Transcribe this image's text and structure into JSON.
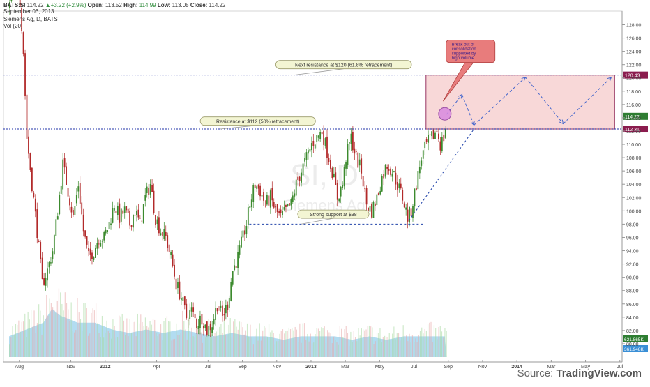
{
  "header": {
    "symbol": "BATS:SI",
    "last": "114.22",
    "change": "+3.22 (+2.9%)",
    "open_label": "Open:",
    "open": "113.52",
    "high_label": "High:",
    "high": "114.99",
    "low_label": "Low:",
    "low": "113.05",
    "close_label": "Close:",
    "close": "114.22",
    "date": "September 06, 2013",
    "study_title": "Siemens Ag, D, BATS",
    "volume_study": "Vol (20)"
  },
  "watermark": {
    "symbol": "SI, D",
    "name": "Siemens Ag"
  },
  "source": {
    "prefix": "Source:",
    "brand": "TradingView.com"
  },
  "chart_data": {
    "type": "candlestick",
    "y_range": [
      78,
      137
    ],
    "y_ticks": [
      80,
      82,
      84,
      86,
      88,
      90,
      92,
      94,
      96,
      98,
      100,
      102,
      104,
      106,
      108,
      110,
      112,
      114,
      116,
      118,
      120,
      122,
      124,
      126,
      128,
      130,
      132,
      134,
      136,
      138
    ],
    "y_tick_labels": [
      "80.00",
      "82.00",
      "84.00",
      "86.00",
      "88.00",
      "90.00",
      "92.00",
      "94.00",
      "96.00",
      "98.00",
      "100.00",
      "102.00",
      "104.00",
      "106.00",
      "108.00",
      "110.00",
      "112.00",
      "114.00",
      "116.00",
      "118.00",
      "120.00",
      "122.00",
      "124.00",
      "126.00",
      "128.00",
      "130.00",
      "132.00",
      "134.00",
      "136.00",
      "138.00"
    ],
    "x_ticks": [
      {
        "label": "Aug",
        "t": 0.6
      },
      {
        "label": "Nov",
        "t": 3.6
      },
      {
        "label": "2012",
        "t": 5.6
      },
      {
        "label": "Apr",
        "t": 8.6
      },
      {
        "label": "Jul",
        "t": 11.6
      },
      {
        "label": "Sep",
        "t": 13.6
      },
      {
        "label": "Nov",
        "t": 15.6
      },
      {
        "label": "2013",
        "t": 17.6
      },
      {
        "label": "Mar",
        "t": 19.6
      },
      {
        "label": "May",
        "t": 21.6
      },
      {
        "label": "Jul",
        "t": 23.6
      },
      {
        "label": "Sep",
        "t": 25.6
      },
      {
        "label": "Nov",
        "t": 27.6
      },
      {
        "label": "2014",
        "t": 29.6
      },
      {
        "label": "Mar",
        "t": 31.6
      },
      {
        "label": "May",
        "t": 33.6
      },
      {
        "label": "Jul",
        "t": 35.6
      }
    ],
    "bold_x_labels": [
      "2012",
      "2013",
      "2014"
    ],
    "price_path": [
      [
        0,
        131
      ],
      [
        0.3,
        133
      ],
      [
        0.5,
        135
      ],
      [
        0.65,
        130
      ],
      [
        0.8,
        124
      ],
      [
        1,
        111
      ],
      [
        1.3,
        104
      ],
      [
        1.6,
        97
      ],
      [
        1.9,
        89
      ],
      [
        2.2,
        91
      ],
      [
        2.5,
        94
      ],
      [
        2.8,
        100
      ],
      [
        3.1,
        107
      ],
      [
        3.4,
        103
      ],
      [
        3.7,
        99
      ],
      [
        4,
        104
      ],
      [
        4.3,
        97
      ],
      [
        4.6,
        93
      ],
      [
        4.9,
        94
      ],
      [
        5.2,
        96
      ],
      [
        5.5,
        96
      ],
      [
        5.8,
        98
      ],
      [
        6.1,
        101
      ],
      [
        6.4,
        99
      ],
      [
        6.7,
        100
      ],
      [
        7,
        98
      ],
      [
        7.3,
        100
      ],
      [
        7.6,
        98
      ],
      [
        7.9,
        102
      ],
      [
        8.2,
        104
      ],
      [
        8.5,
        99
      ],
      [
        8.8,
        97
      ],
      [
        9.1,
        96
      ],
      [
        9.4,
        93
      ],
      [
        9.7,
        89
      ],
      [
        10,
        87
      ],
      [
        10.3,
        84
      ],
      [
        10.6,
        85
      ],
      [
        10.9,
        83
      ],
      [
        11.2,
        84
      ],
      [
        11.5,
        82
      ],
      [
        11.8,
        83
      ],
      [
        12.1,
        86
      ],
      [
        12.4,
        84
      ],
      [
        12.7,
        86
      ],
      [
        13,
        91
      ],
      [
        13.3,
        93
      ],
      [
        13.6,
        96
      ],
      [
        13.8,
        98
      ],
      [
        14,
        101
      ],
      [
        14.3,
        104
      ],
      [
        14.6,
        103
      ],
      [
        14.9,
        101
      ],
      [
        15.2,
        102
      ],
      [
        15.5,
        100
      ],
      [
        15.8,
        99
      ],
      [
        16.1,
        100
      ],
      [
        16.4,
        101
      ],
      [
        16.7,
        104
      ],
      [
        17,
        106
      ],
      [
        17.3,
        108
      ],
      [
        17.6,
        110
      ],
      [
        17.9,
        111
      ],
      [
        18.2,
        112
      ],
      [
        18.5,
        109
      ],
      [
        18.8,
        106
      ],
      [
        19.1,
        102
      ],
      [
        19.4,
        104
      ],
      [
        19.6,
        108
      ],
      [
        19.9,
        111
      ],
      [
        20.2,
        108
      ],
      [
        20.5,
        106
      ],
      [
        20.8,
        101
      ],
      [
        21.1,
        100
      ],
      [
        21.4,
        102
      ],
      [
        21.7,
        105
      ],
      [
        22,
        107
      ],
      [
        22.3,
        106
      ],
      [
        22.6,
        104
      ],
      [
        22.9,
        102
      ],
      [
        23.2,
        99
      ],
      [
        23.4,
        100
      ],
      [
        23.7,
        104
      ],
      [
        24,
        108
      ],
      [
        24.3,
        110
      ],
      [
        24.6,
        111
      ],
      [
        24.9,
        112
      ],
      [
        25.1,
        110
      ],
      [
        25.3,
        111
      ],
      [
        25.5,
        114.22
      ]
    ],
    "volume_level": [
      [
        0,
        3
      ],
      [
        1,
        4
      ],
      [
        2,
        5
      ],
      [
        2.5,
        7
      ],
      [
        3,
        6
      ],
      [
        4,
        5
      ],
      [
        5,
        5
      ],
      [
        6,
        4
      ],
      [
        7,
        3.5
      ],
      [
        8,
        4
      ],
      [
        9,
        3.5
      ],
      [
        10,
        4
      ],
      [
        11,
        3.5
      ],
      [
        12,
        3
      ],
      [
        13,
        3.5
      ],
      [
        14,
        3
      ],
      [
        15,
        3
      ],
      [
        16,
        2.5
      ],
      [
        17,
        3
      ],
      [
        18,
        3
      ],
      [
        19,
        3
      ],
      [
        20,
        2.5
      ],
      [
        21,
        3
      ],
      [
        22,
        2.5
      ],
      [
        23,
        3
      ],
      [
        24,
        3
      ],
      [
        25,
        3
      ],
      [
        25.5,
        3
      ]
    ],
    "volume_y_range": [
      0,
      12
    ],
    "resistance_high": {
      "value": 120.43,
      "label": "120.43"
    },
    "resistance_low": {
      "value": 112.31,
      "label": "112.31"
    },
    "last_price": {
      "value": 114.22,
      "label": "114.22"
    },
    "volume_labels": {
      "volume": "621.865K",
      "volume_ma": "361.948K"
    },
    "support_line": {
      "value": 98.0,
      "t_start": 14.0,
      "t_end": 24.2
    },
    "trendline": {
      "from": [
        23.3,
        98.5
      ],
      "to": [
        27.1,
        112.31
      ]
    },
    "target_box": {
      "t_start": 24.3,
      "t_end": 35.3,
      "top": 120.43,
      "bottom": 112.31
    },
    "projection_path": [
      [
        25.5,
        114.5
      ],
      [
        26.4,
        117.5
      ],
      [
        27.1,
        112.9
      ],
      [
        30.1,
        120.1
      ],
      [
        32.3,
        113.1
      ],
      [
        35.1,
        120.1
      ]
    ],
    "highlight_circle": {
      "t": 25.4,
      "value": 114.6
    },
    "annotations": [
      {
        "text": "Next resistance at $120 (61.8% retracement)",
        "t": 19.5,
        "value": 122.0,
        "point_t": 16.6,
        "point_value": 120.43
      },
      {
        "text": "Resistance at $112 (50% retracement)",
        "t": 14.5,
        "value": 113.5,
        "point_t": 12.3,
        "point_value": 112.31
      },
      {
        "text": "Strong support at $98",
        "t": 18.9,
        "value": 99.5,
        "point_t": 17.0,
        "point_value": 98.0
      }
    ],
    "callout": {
      "text": [
        "Break out of",
        "consolidation",
        "supported by",
        "high volume"
      ],
      "t": 26.9,
      "value": 124.0,
      "point_t": 25.3,
      "point_value": 116.5
    },
    "colors": {
      "up": "#3c8a2e",
      "down": "#b22a2a",
      "volume_area": "#9fd3ee",
      "volume_bar_up": "#a8d8a0",
      "volume_bar_down": "#e8a8a8",
      "resistance": "#2233aa",
      "box_fill": "#f6cccc",
      "box_stroke": "#8b1c4e",
      "projection": "#4466cc",
      "support": "#2244aa",
      "callout_fill": "#e87c7c",
      "callout_text": "#3a1d8a",
      "circle": "#d98ae0",
      "label_red": "#8b1c4e",
      "label_green": "#2e7d32",
      "label_blue": "#3a8fd6"
    }
  }
}
